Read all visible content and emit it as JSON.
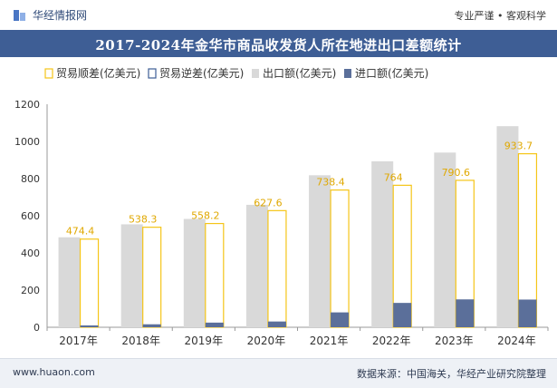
{
  "header": {
    "brand": "华经情报网",
    "tagline": "专业严谨 • 客观科学"
  },
  "footer": {
    "website": "www.huaon.com",
    "source": "数据来源：中国海关，华经产业研究院整理"
  },
  "chart_data": {
    "type": "bar",
    "title": "2017-2024年金华市商品收发货人所在地进出口差额统计",
    "categories": [
      "2017年",
      "2018年",
      "2019年",
      "2020年",
      "2021年",
      "2022年",
      "2023年",
      "2024年"
    ],
    "series": [
      {
        "name": "贸易顺差(亿美元)",
        "values": [
          474.4,
          538.3,
          558.2,
          627.6,
          738.4,
          764,
          790.6,
          933.7
        ],
        "color": "#f5c518"
      },
      {
        "name": "贸易逆差(亿美元)",
        "values": [
          0,
          0,
          0,
          0,
          0,
          0,
          0,
          0
        ],
        "color": "#3e5e95"
      },
      {
        "name": "出口额(亿美元)",
        "values": [
          484,
          554,
          583,
          659,
          818,
          893,
          940,
          1082
        ],
        "color": "#d9d9d9"
      },
      {
        "name": "进口额(亿美元)",
        "values": [
          10,
          16,
          25,
          31,
          80,
          131,
          150,
          149
        ],
        "color": "#5b6f9a"
      }
    ],
    "data_labels": [
      "474.4",
      "538.3",
      "558.2",
      "627.6",
      "738.4",
      "764",
      "790.6",
      "933.7"
    ],
    "ylim": [
      0,
      1200
    ],
    "yticks": [
      "0",
      "200",
      "400",
      "600",
      "800",
      "1000",
      "1200"
    ],
    "xlabel": "",
    "ylabel": "",
    "grid": false,
    "legend_position": "top-left"
  }
}
